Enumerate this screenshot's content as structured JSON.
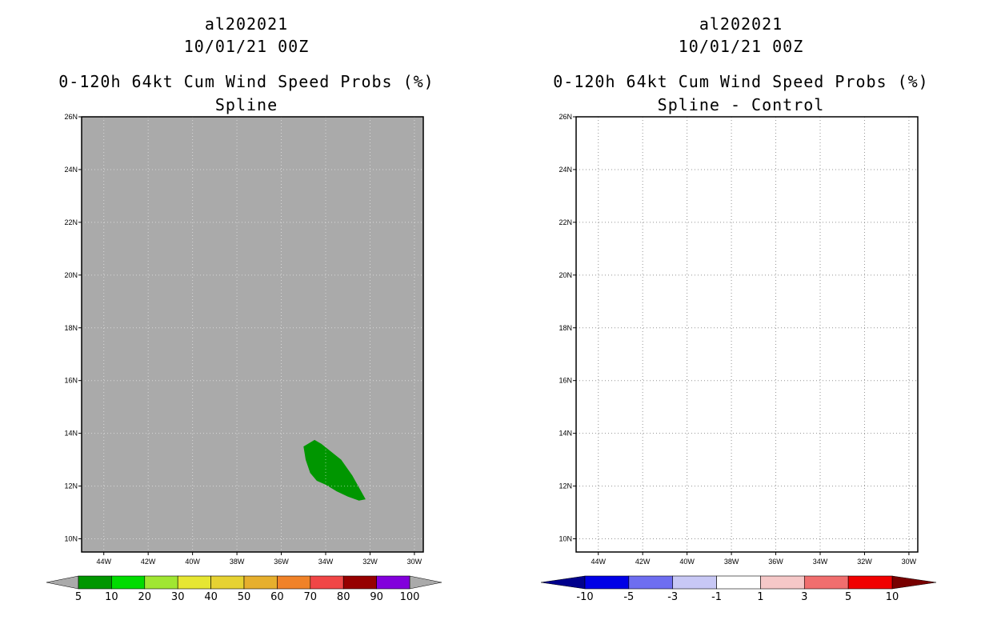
{
  "chart_data": [
    {
      "type": "map",
      "title": {
        "storm": "al202021",
        "datetime": "10/01/21 00Z",
        "product": "0-120h 64kt Cum Wind Speed Probs (%)",
        "variant": "Spline"
      },
      "lon_ticks": [
        "44W",
        "42W",
        "40W",
        "38W",
        "36W",
        "34W",
        "32W",
        "30W"
      ],
      "lat_ticks": [
        "10N",
        "12N",
        "14N",
        "16N",
        "18N",
        "20N",
        "22N",
        "24N",
        "26N"
      ],
      "lon_range": [
        -45.0,
        -29.6
      ],
      "lat_range": [
        9.5,
        26.0
      ],
      "background_color": "#aaaaaa",
      "probability_area": {
        "range": "5-10",
        "color": "#009600",
        "outline_lonlat": [
          [
            -35.0,
            13.5
          ],
          [
            -34.5,
            13.75
          ],
          [
            -34.2,
            13.6
          ],
          [
            -33.6,
            13.2
          ],
          [
            -33.3,
            13.0
          ],
          [
            -32.8,
            12.4
          ],
          [
            -32.4,
            11.8
          ],
          [
            -32.2,
            11.5
          ],
          [
            -32.5,
            11.45
          ],
          [
            -33.0,
            11.6
          ],
          [
            -33.5,
            11.8
          ],
          [
            -34.0,
            12.05
          ],
          [
            -34.4,
            12.2
          ],
          [
            -34.7,
            12.5
          ],
          [
            -34.9,
            13.0
          ]
        ]
      },
      "colorbar": {
        "labels": [
          "5",
          "10",
          "20",
          "30",
          "40",
          "50",
          "60",
          "70",
          "80",
          "90",
          "100"
        ],
        "colors": [
          "#009600",
          "#00dc00",
          "#a0e632",
          "#e6e632",
          "#e6d232",
          "#e6af2d",
          "#f08228",
          "#f04646",
          "#960000",
          "#8200dc"
        ],
        "end_colors": [
          "#aaaaaa",
          "#aaaaaa"
        ]
      }
    },
    {
      "type": "map",
      "title": {
        "storm": "al202021",
        "datetime": "10/01/21 00Z",
        "product": "0-120h 64kt Cum Wind Speed Probs (%)",
        "variant": "Spline - Control"
      },
      "lon_ticks": [
        "44W",
        "42W",
        "40W",
        "38W",
        "36W",
        "34W",
        "32W",
        "30W"
      ],
      "lat_ticks": [
        "10N",
        "12N",
        "14N",
        "16N",
        "18N",
        "20N",
        "22N",
        "24N",
        "26N"
      ],
      "lon_range": [
        -45.0,
        -29.6
      ],
      "lat_range": [
        9.5,
        26.0
      ],
      "background_color": "#ffffff",
      "colorbar": {
        "labels": [
          "-10",
          "-5",
          "-3",
          "-1",
          "1",
          "3",
          "5",
          "10"
        ],
        "colors": [
          "#0000e6",
          "#6e6ef0",
          "#c8c8f5",
          "#ffffff",
          "#f5c8c8",
          "#f06e6e",
          "#f00000"
        ],
        "end_colors": [
          "#00008c",
          "#780000"
        ]
      }
    }
  ]
}
